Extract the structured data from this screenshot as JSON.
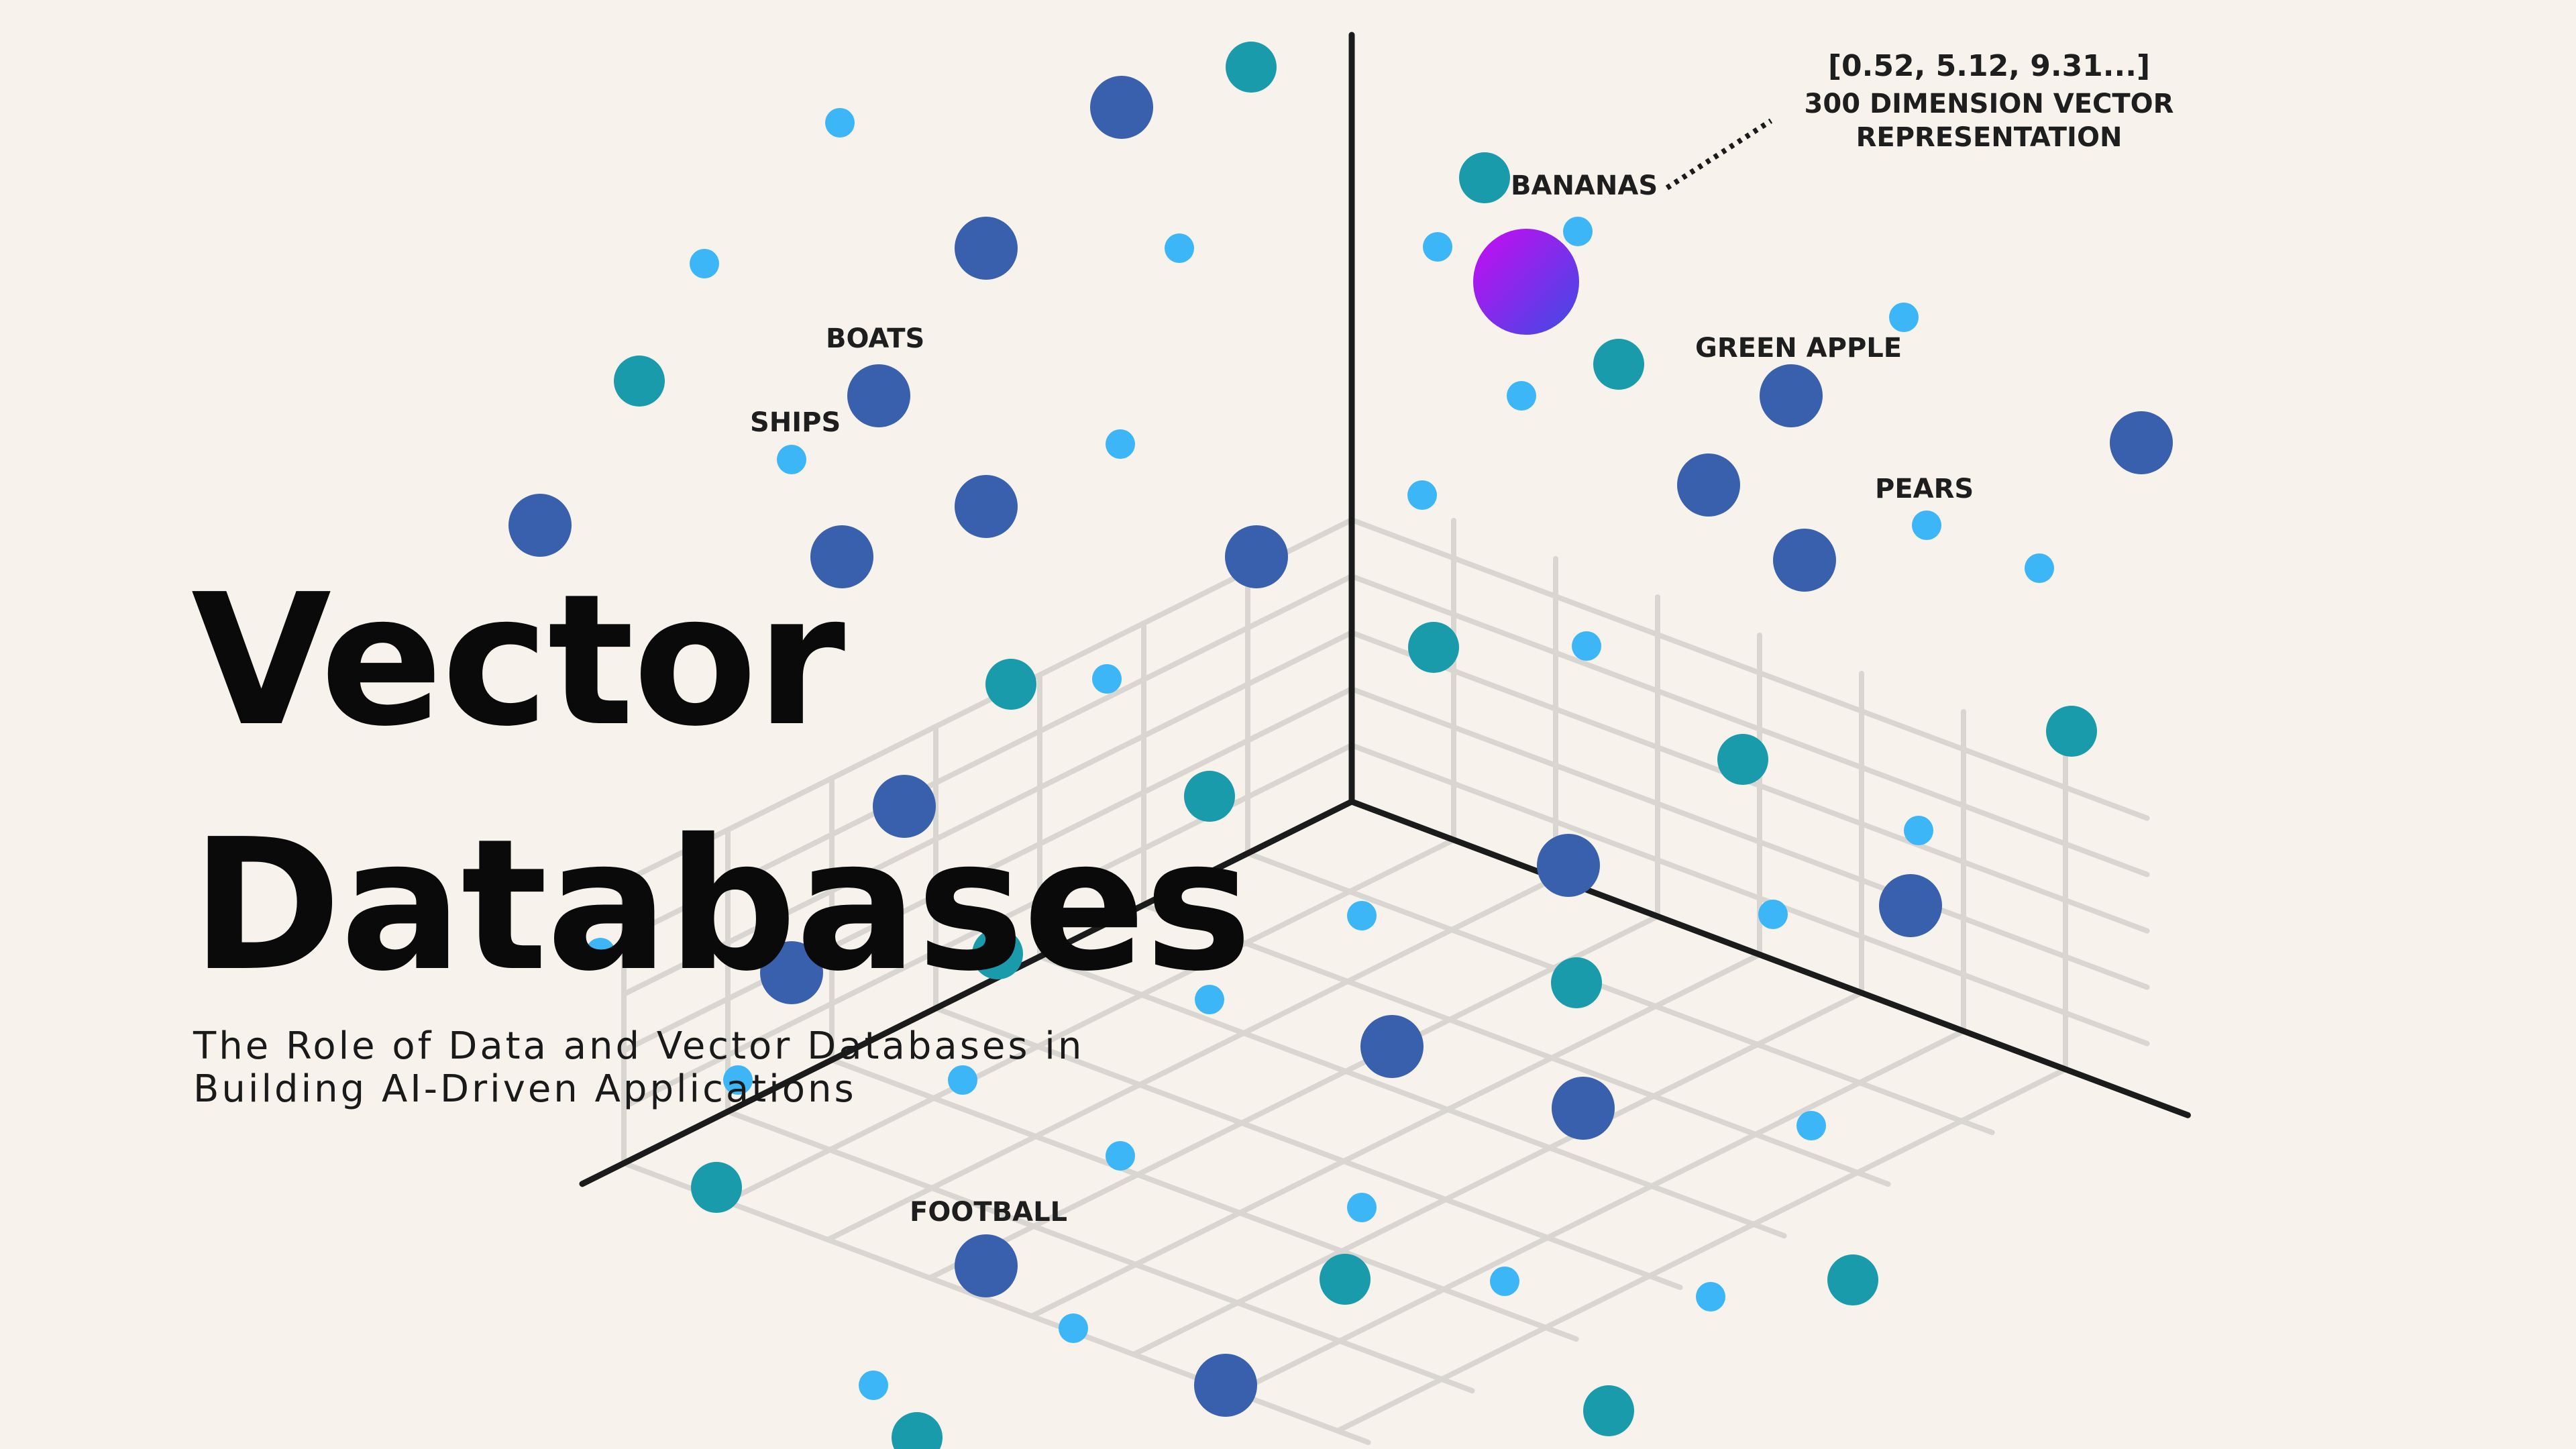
{
  "title": {
    "line1": "Vector",
    "line2": "Databases"
  },
  "subtitle": {
    "line1": "The Role of Data and Vector Databases in",
    "line2": "Building AI-Driven Applications"
  },
  "annotation": {
    "vector": "[0.52, 5.12, 9.31...]",
    "line1": "300 DIMENSION VECTOR",
    "line2": "REPRESENTATION"
  },
  "labels": {
    "bananas": "BANANAS",
    "green_apple": "GREEN APPLE",
    "pears": "PEARS",
    "boats": "BOATS",
    "ships": "SHIPS",
    "football": "FOOTBALL"
  },
  "colors": {
    "background": "#F7F3EC",
    "grid": "#D9D6D1",
    "axis": "#1B1B1B",
    "point_light_blue": "#3DB6F7",
    "point_teal": "#1A9BAC",
    "point_dark_blue": "#3860AC",
    "highlight_start": "#C90AF3",
    "highlight_end": "#3E4CE3"
  }
}
